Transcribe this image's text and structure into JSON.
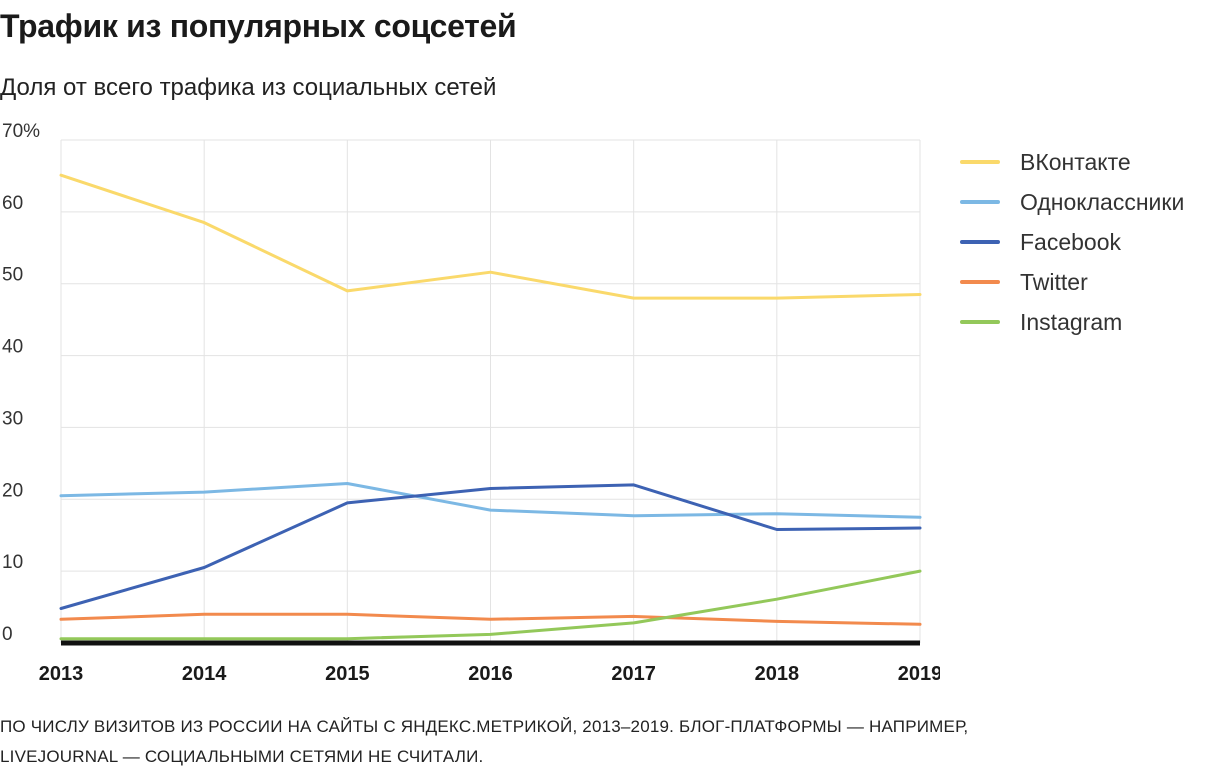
{
  "header": {
    "title": "Трафик из популярных соцсетей",
    "subtitle": "Доля от всего трафика из социальных сетей"
  },
  "footnote": "ПО ЧИСЛУ ВИЗИТОВ ИЗ РОССИИ НА САЙТЫ С ЯНДЕКС.МЕТРИКОЙ, 2013–2019. БЛОГ-ПЛАТФОРМЫ — НАПРИМЕР, LIVEJOURNAL — СОЦИАЛЬНЫМИ СЕТЯМИ НЕ СЧИТАЛИ.",
  "chart_data": {
    "type": "line",
    "title": "Трафик из популярных соцсетей",
    "subtitle": "Доля от всего трафика из социальных сетей",
    "x": [
      "2013",
      "2014",
      "2015",
      "2016",
      "2017",
      "2018",
      "2019"
    ],
    "y_ticks": [
      0,
      10,
      20,
      30,
      40,
      50,
      60,
      70
    ],
    "y_tick_labels": [
      "0",
      "10",
      "20",
      "30",
      "40",
      "50",
      "60",
      "70%"
    ],
    "ylim": [
      0,
      70
    ],
    "grid": true,
    "legend_position": "right",
    "series": [
      {
        "name": "ВКонтакте",
        "color": "#fad96b",
        "values": [
          65.1,
          58.5,
          49.0,
          51.6,
          48.0,
          48.0,
          48.5
        ]
      },
      {
        "name": "Одноклассники",
        "color": "#7cb8e4",
        "values": [
          20.5,
          21.0,
          22.2,
          18.5,
          17.7,
          18.0,
          17.5
        ]
      },
      {
        "name": "Facebook",
        "color": "#3d62b3",
        "values": [
          4.8,
          10.5,
          19.5,
          21.5,
          22.0,
          15.8,
          16.0
        ]
      },
      {
        "name": "Twitter",
        "color": "#f28a4d",
        "values": [
          3.3,
          4.0,
          4.0,
          3.3,
          3.7,
          3.0,
          2.6
        ]
      },
      {
        "name": "Instagram",
        "color": "#93c85a",
        "values": [
          0.6,
          0.6,
          0.6,
          1.2,
          2.8,
          6.1,
          10.0
        ]
      }
    ]
  }
}
